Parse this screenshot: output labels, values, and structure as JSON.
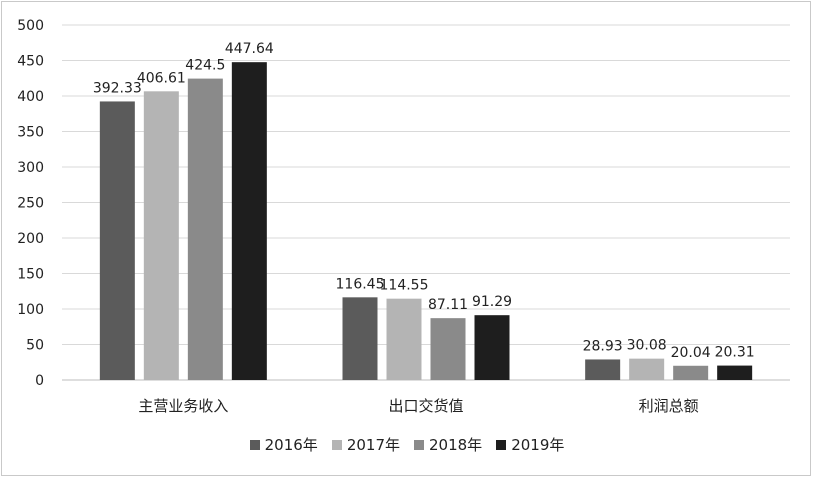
{
  "chart_data": {
    "type": "bar",
    "title": "",
    "xlabel": "",
    "ylabel": "",
    "categories": [
      "主营业务收入",
      "出口交货值",
      "利润总额"
    ],
    "series": [
      {
        "name": "2016年",
        "color": "#5b5b5b",
        "values": [
          392.33,
          116.45,
          28.93
        ]
      },
      {
        "name": "2017年",
        "color": "#b4b4b4",
        "values": [
          406.61,
          114.55,
          30.08
        ]
      },
      {
        "name": "2018年",
        "color": "#8a8a8a",
        "values": [
          424.5,
          87.11,
          20.04
        ]
      },
      {
        "name": "2019年",
        "color": "#1e1e1e",
        "values": [
          447.64,
          91.29,
          20.31
        ]
      }
    ],
    "ylim": [
      0,
      500
    ],
    "yticks": [
      "0",
      "50",
      "100",
      "150",
      "200",
      "250",
      "300",
      "350",
      "400",
      "450",
      "500"
    ],
    "grid": true,
    "legend_position": "bottom"
  }
}
